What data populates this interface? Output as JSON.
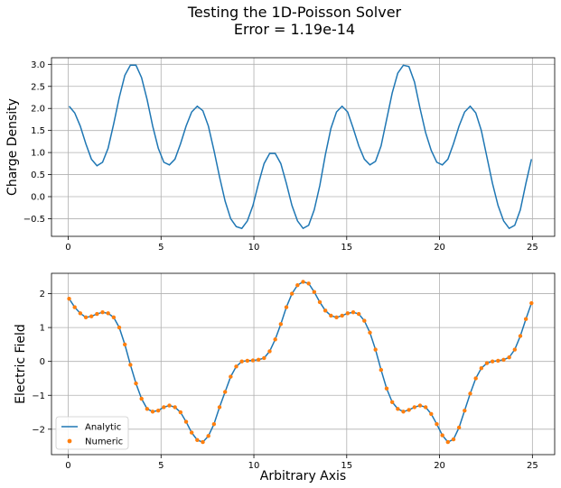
{
  "figure": {
    "title_line1": "Testing the 1D-Poisson Solver",
    "title_line2": "Error = 1.19e-14"
  },
  "chart_data": [
    {
      "type": "line",
      "ylabel": "Charge Density",
      "xlabel": "",
      "xlim": [
        -0.9,
        26.2
      ],
      "ylim": [
        -0.9,
        3.15
      ],
      "xticks": [
        0,
        5,
        10,
        15,
        20,
        25
      ],
      "xtick_labels": [
        "0",
        "5",
        "10",
        "15",
        "20",
        "25"
      ],
      "yticks": [
        -0.5,
        0.0,
        0.5,
        1.0,
        1.5,
        2.0,
        2.5,
        3.0
      ],
      "ytick_labels": [
        "−0.5",
        "0.0",
        "0.5",
        "1.0",
        "1.5",
        "2.0",
        "2.5",
        "3.0"
      ],
      "grid": true,
      "color": "#1f77b4",
      "x": [
        0.05,
        0.35,
        0.65,
        0.95,
        1.25,
        1.55,
        1.85,
        2.15,
        2.45,
        2.75,
        3.05,
        3.35,
        3.65,
        3.95,
        4.25,
        4.55,
        4.85,
        5.15,
        5.45,
        5.75,
        6.05,
        6.35,
        6.65,
        6.95,
        7.25,
        7.55,
        7.85,
        8.15,
        8.45,
        8.75,
        9.05,
        9.35,
        9.65,
        9.95,
        10.25,
        10.55,
        10.85,
        11.15,
        11.45,
        11.75,
        12.05,
        12.35,
        12.65,
        12.95,
        13.25,
        13.55,
        13.85,
        14.15,
        14.45,
        14.75,
        15.05,
        15.35,
        15.65,
        15.95,
        16.25,
        16.55,
        16.85,
        17.15,
        17.45,
        17.75,
        18.05,
        18.35,
        18.65,
        18.95,
        19.25,
        19.55,
        19.85,
        20.15,
        20.45,
        20.75,
        21.05,
        21.35,
        21.65,
        21.95,
        22.25,
        22.55,
        22.85,
        23.15,
        23.45,
        23.75,
        24.05,
        24.35,
        24.65,
        24.95
      ],
      "y": [
        2.05,
        1.9,
        1.6,
        1.2,
        0.85,
        0.7,
        0.78,
        1.1,
        1.65,
        2.25,
        2.75,
        2.98,
        2.98,
        2.7,
        2.2,
        1.6,
        1.1,
        0.78,
        0.72,
        0.85,
        1.2,
        1.6,
        1.92,
        2.05,
        1.95,
        1.6,
        1.05,
        0.45,
        -0.1,
        -0.5,
        -0.68,
        -0.72,
        -0.55,
        -0.2,
        0.3,
        0.75,
        0.98,
        0.98,
        0.75,
        0.3,
        -0.2,
        -0.55,
        -0.72,
        -0.65,
        -0.3,
        0.25,
        0.95,
        1.55,
        1.92,
        2.05,
        1.92,
        1.55,
        1.15,
        0.85,
        0.72,
        0.8,
        1.15,
        1.75,
        2.35,
        2.8,
        2.98,
        2.95,
        2.6,
        2.0,
        1.45,
        1.05,
        0.78,
        0.72,
        0.85,
        1.2,
        1.6,
        1.92,
        2.05,
        1.9,
        1.5,
        0.9,
        0.3,
        -0.2,
        -0.55,
        -0.72,
        -0.65,
        -0.3,
        0.3,
        0.85
      ]
    },
    {
      "type": "line",
      "ylabel": "Electric Field",
      "xlabel": "Arbitrary Axis",
      "xlim": [
        -0.9,
        26.2
      ],
      "ylim": [
        -2.75,
        2.6
      ],
      "xticks": [
        0,
        5,
        10,
        15,
        20,
        25
      ],
      "xtick_labels": [
        "0",
        "5",
        "10",
        "15",
        "20",
        "25"
      ],
      "yticks": [
        -2,
        -1,
        0,
        1,
        2
      ],
      "ytick_labels": [
        "−2",
        "−1",
        "0",
        "1",
        "2"
      ],
      "grid": true,
      "legend": {
        "placement": "lower-left",
        "entries": [
          "Analytic",
          "Numeric"
        ]
      },
      "series": [
        {
          "name": "Analytic",
          "color": "#1f77b4",
          "style": "line"
        },
        {
          "name": "Numeric",
          "color": "#ff7f0e",
          "style": "markers"
        }
      ],
      "x": [
        0.05,
        0.35,
        0.65,
        0.95,
        1.25,
        1.55,
        1.85,
        2.15,
        2.45,
        2.75,
        3.05,
        3.35,
        3.65,
        3.95,
        4.25,
        4.55,
        4.85,
        5.15,
        5.45,
        5.75,
        6.05,
        6.35,
        6.65,
        6.95,
        7.25,
        7.55,
        7.85,
        8.15,
        8.45,
        8.75,
        9.05,
        9.35,
        9.65,
        9.95,
        10.25,
        10.55,
        10.85,
        11.15,
        11.45,
        11.75,
        12.05,
        12.35,
        12.65,
        12.95,
        13.25,
        13.55,
        13.85,
        14.15,
        14.45,
        14.75,
        15.05,
        15.35,
        15.65,
        15.95,
        16.25,
        16.55,
        16.85,
        17.15,
        17.45,
        17.75,
        18.05,
        18.35,
        18.65,
        18.95,
        19.25,
        19.55,
        19.85,
        20.15,
        20.45,
        20.75,
        21.05,
        21.35,
        21.65,
        21.95,
        22.25,
        22.55,
        22.85,
        23.15,
        23.45,
        23.75,
        24.05,
        24.35,
        24.65,
        24.95
      ],
      "y": [
        1.85,
        1.6,
        1.42,
        1.3,
        1.33,
        1.4,
        1.45,
        1.42,
        1.3,
        1.0,
        0.5,
        -0.1,
        -0.65,
        -1.1,
        -1.4,
        -1.48,
        -1.45,
        -1.35,
        -1.3,
        -1.35,
        -1.5,
        -1.78,
        -2.1,
        -2.32,
        -2.38,
        -2.2,
        -1.85,
        -1.35,
        -0.9,
        -0.45,
        -0.15,
        0.0,
        0.02,
        0.03,
        0.05,
        0.1,
        0.3,
        0.65,
        1.1,
        1.6,
        2.0,
        2.25,
        2.35,
        2.3,
        2.05,
        1.75,
        1.5,
        1.35,
        1.3,
        1.35,
        1.42,
        1.45,
        1.4,
        1.2,
        0.85,
        0.35,
        -0.25,
        -0.8,
        -1.2,
        -1.4,
        -1.48,
        -1.43,
        -1.35,
        -1.3,
        -1.35,
        -1.55,
        -1.85,
        -2.18,
        -2.38,
        -2.3,
        -1.95,
        -1.45,
        -0.95,
        -0.5,
        -0.2,
        -0.05,
        0.0,
        0.02,
        0.05,
        0.12,
        0.35,
        0.75,
        1.25,
        1.72
      ]
    }
  ]
}
